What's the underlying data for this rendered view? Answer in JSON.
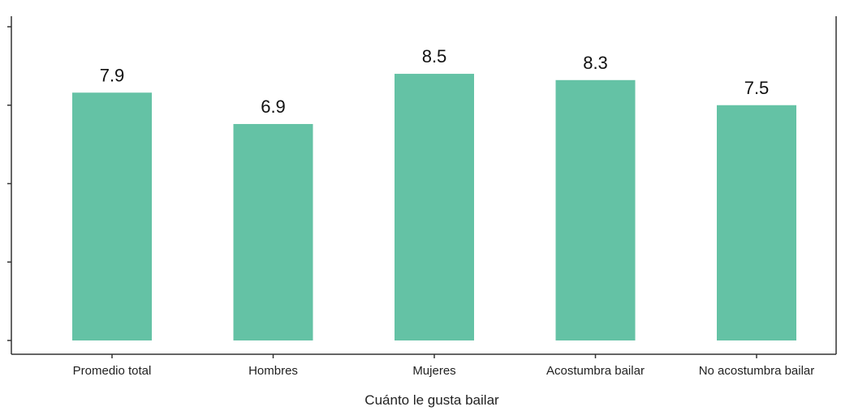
{
  "chart_data": {
    "type": "bar",
    "title": "",
    "xlabel": "Cuánto le gusta bailar",
    "ylabel": "",
    "categories": [
      "Promedio total",
      "Hombres",
      "Mujeres",
      "Acostumbra bailar",
      "No acostumbra bailar"
    ],
    "values": [
      7.9,
      6.9,
      8.5,
      8.3,
      7.5
    ],
    "value_labels": [
      "7.9",
      "6.9",
      "8.5",
      "8.3",
      "7.5"
    ],
    "ylim": [
      0,
      10
    ],
    "grid": false,
    "legend": "none"
  },
  "colors": {
    "bar": "#64c2a5",
    "axis": "#333333"
  }
}
